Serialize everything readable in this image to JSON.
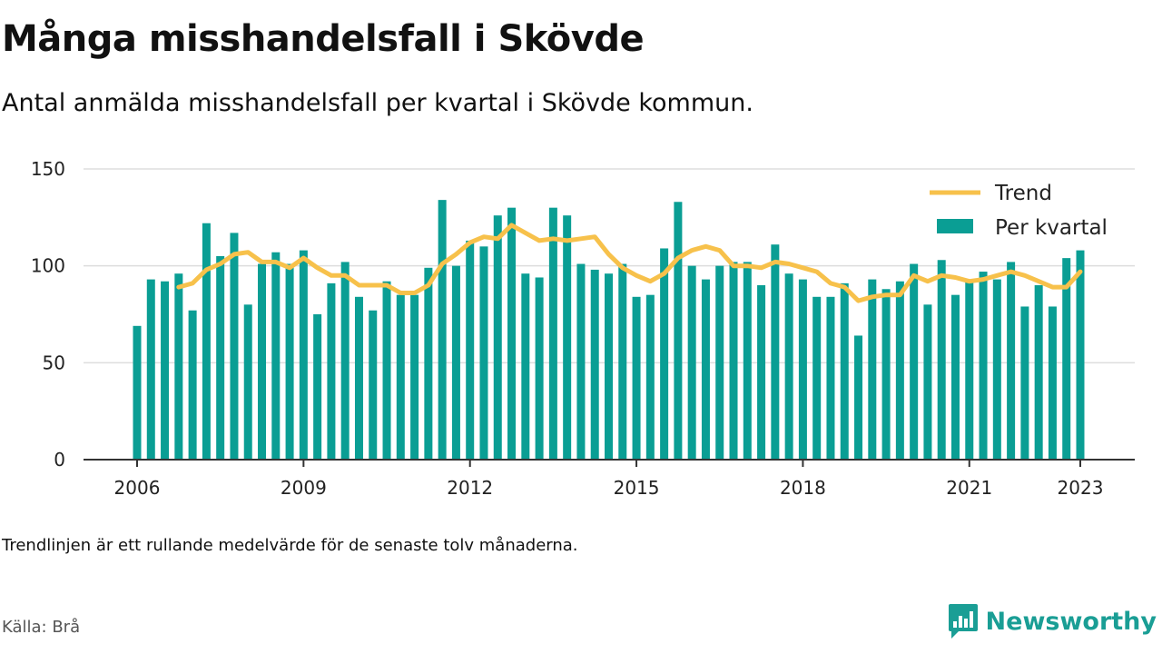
{
  "title": "Många misshandelsfall i Skövde",
  "subtitle": "Antal anmälda misshandelsfall per kvartal i Skövde kommun.",
  "note": "Trendlinjen är ett rullande medelvärde för de senaste tolv månaderna.",
  "source": "Källa: Brå",
  "brand": {
    "name": "Newsworthy",
    "icon": "newsworthy-logo-icon",
    "color": "#1a9e95"
  },
  "chart_data": {
    "type": "bar",
    "x_start": "2006 Q1",
    "x_ticks": [
      "2006",
      "2009",
      "2012",
      "2015",
      "2018",
      "2021",
      "2023"
    ],
    "y_ticks": [
      "0",
      "50",
      "100",
      "150"
    ],
    "ylim": [
      0,
      150
    ],
    "grid": true,
    "legend_position": "top-right",
    "series": [
      {
        "name": "Per kvartal",
        "type": "bar",
        "color": "#0a9e94",
        "values": [
          69,
          93,
          92,
          96,
          77,
          122,
          105,
          117,
          80,
          101,
          107,
          101,
          108,
          75,
          91,
          102,
          84,
          77,
          92,
          85,
          85,
          99,
          134,
          100,
          113,
          110,
          126,
          130,
          96,
          94,
          130,
          126,
          101,
          98,
          96,
          101,
          84,
          85,
          109,
          133,
          100,
          93,
          100,
          102,
          102,
          90,
          111,
          96,
          93,
          84,
          84,
          91,
          64,
          93,
          88,
          92,
          101,
          80,
          103,
          85,
          93,
          97,
          93,
          102,
          79,
          90,
          79,
          104,
          108
        ]
      },
      {
        "name": "Trend",
        "type": "line",
        "color": "#f7c14b",
        "values": [
          null,
          null,
          null,
          89,
          91,
          98,
          101,
          106,
          107,
          102,
          102,
          99,
          104,
          99,
          95,
          95,
          90,
          90,
          90,
          86,
          86,
          90,
          101,
          106,
          112,
          115,
          114,
          121,
          117,
          113,
          114,
          113,
          114,
          115,
          106,
          99,
          95,
          92,
          96,
          104,
          108,
          110,
          108,
          100,
          100,
          99,
          102,
          101,
          99,
          97,
          91,
          89,
          82,
          84,
          85,
          85,
          95,
          92,
          95,
          94,
          92,
          93,
          95,
          97,
          95,
          92,
          89,
          89,
          97
        ]
      }
    ]
  }
}
